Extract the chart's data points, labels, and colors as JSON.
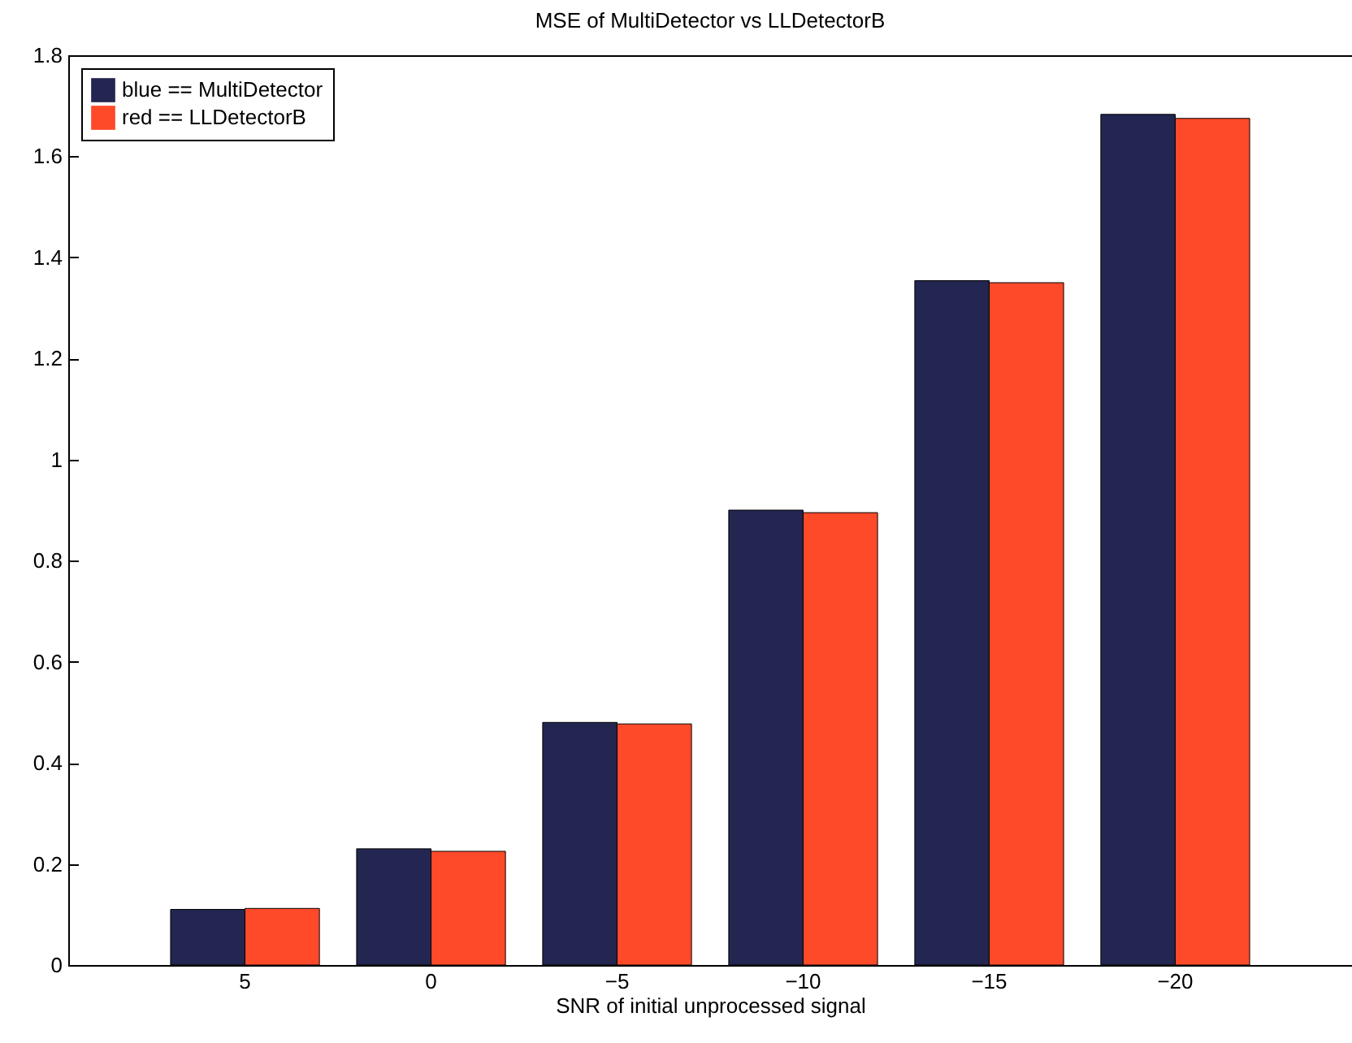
{
  "chart_data": {
    "type": "bar",
    "title": "MSE of MultiDetector vs LLDetectorB",
    "xlabel": "SNR of initial unprocessed signal",
    "categories": [
      "5",
      "0",
      "−5",
      "−10",
      "−15",
      "−20"
    ],
    "series": [
      {
        "name": "blue == MultiDetector",
        "color": "#222650",
        "values": [
          0.11,
          0.23,
          0.48,
          0.9,
          1.354,
          1.683
        ]
      },
      {
        "name": "red == LLDetectorB",
        "color": "#ff4a2a",
        "values": [
          0.112,
          0.225,
          0.477,
          0.895,
          1.35,
          1.675
        ]
      }
    ],
    "ylim": [
      0,
      1.8
    ],
    "yticks": [
      0,
      0.2,
      0.4,
      0.6,
      0.8,
      1,
      1.2,
      1.4,
      1.6,
      1.8
    ],
    "grid": false,
    "legend": "top left"
  }
}
